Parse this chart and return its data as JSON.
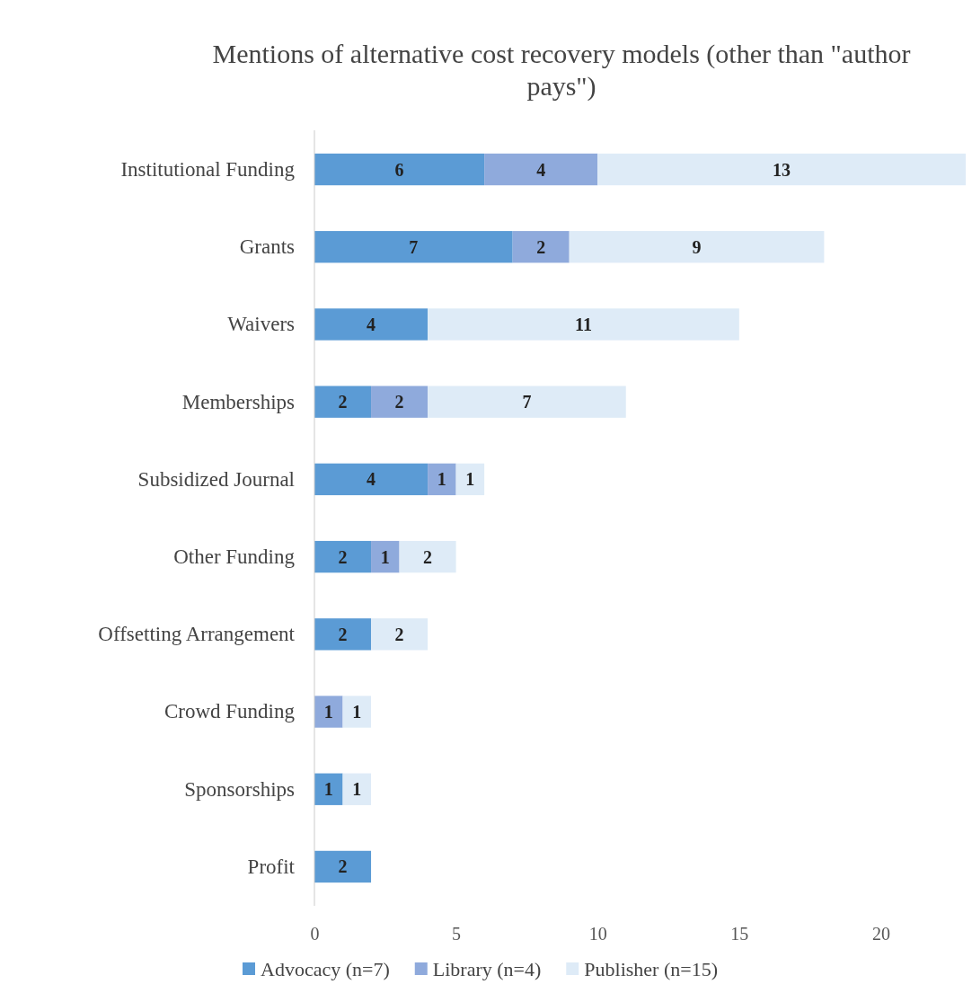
{
  "chart_data": {
    "type": "bar",
    "orientation": "horizontal",
    "stacked": true,
    "title": "Mentions of alternative cost recovery models (other than \"author pays\")",
    "categories": [
      "Institutional Funding",
      "Grants",
      "Waivers",
      "Memberships",
      "Subsidized Journal",
      "Other Funding",
      "Offsetting Arrangement",
      "Crowd Funding",
      "Sponsorships",
      "Profit"
    ],
    "series": [
      {
        "name": "Advocacy (n=7)",
        "color": "#5b9bd5",
        "values": [
          6,
          7,
          4,
          2,
          4,
          2,
          2,
          null,
          1,
          2
        ]
      },
      {
        "name": "Library (n=4)",
        "color": "#8faadc",
        "values": [
          4,
          2,
          null,
          2,
          1,
          1,
          null,
          1,
          null,
          null
        ]
      },
      {
        "name": "Publisher (n=15)",
        "color": "#deebf7",
        "values": [
          13,
          9,
          11,
          7,
          1,
          2,
          2,
          1,
          1,
          null
        ]
      }
    ],
    "xlim": [
      0,
      23
    ],
    "xticks": [
      0,
      5,
      10,
      15,
      20
    ],
    "data_labels": true,
    "legend": "bottom",
    "grid": false
  }
}
